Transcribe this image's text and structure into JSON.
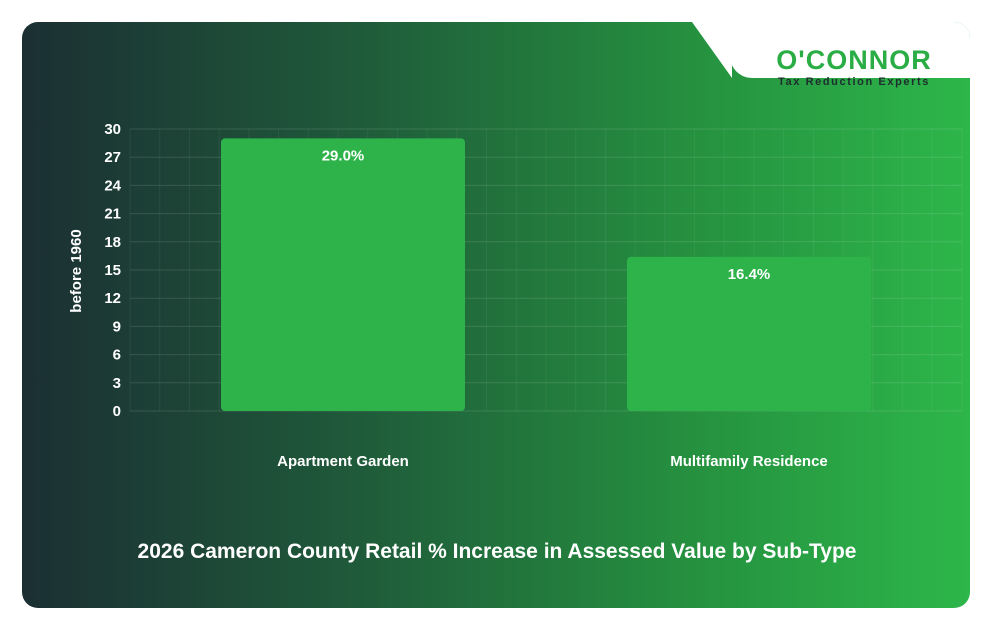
{
  "logo": {
    "name": "O'CONNOR",
    "tagline": "Tax Reduction Experts"
  },
  "colors": {
    "bar": "#2db34a",
    "grid": "#ffffff"
  },
  "chart_data": {
    "type": "bar",
    "title": "2026 Cameron County Retail % Increase in Assessed Value by Sub-Type",
    "ylabel": "before 1960",
    "xlabel": "",
    "categories": [
      "Apartment Garden",
      "Multifamily Residence"
    ],
    "values": [
      29.0,
      16.4
    ],
    "data_labels": [
      "29.0%",
      "16.4%"
    ],
    "ylim": [
      0,
      30
    ],
    "yticks": [
      0,
      3,
      6,
      9,
      12,
      15,
      18,
      21,
      24,
      27,
      30
    ],
    "grid": true,
    "legend": "none"
  }
}
